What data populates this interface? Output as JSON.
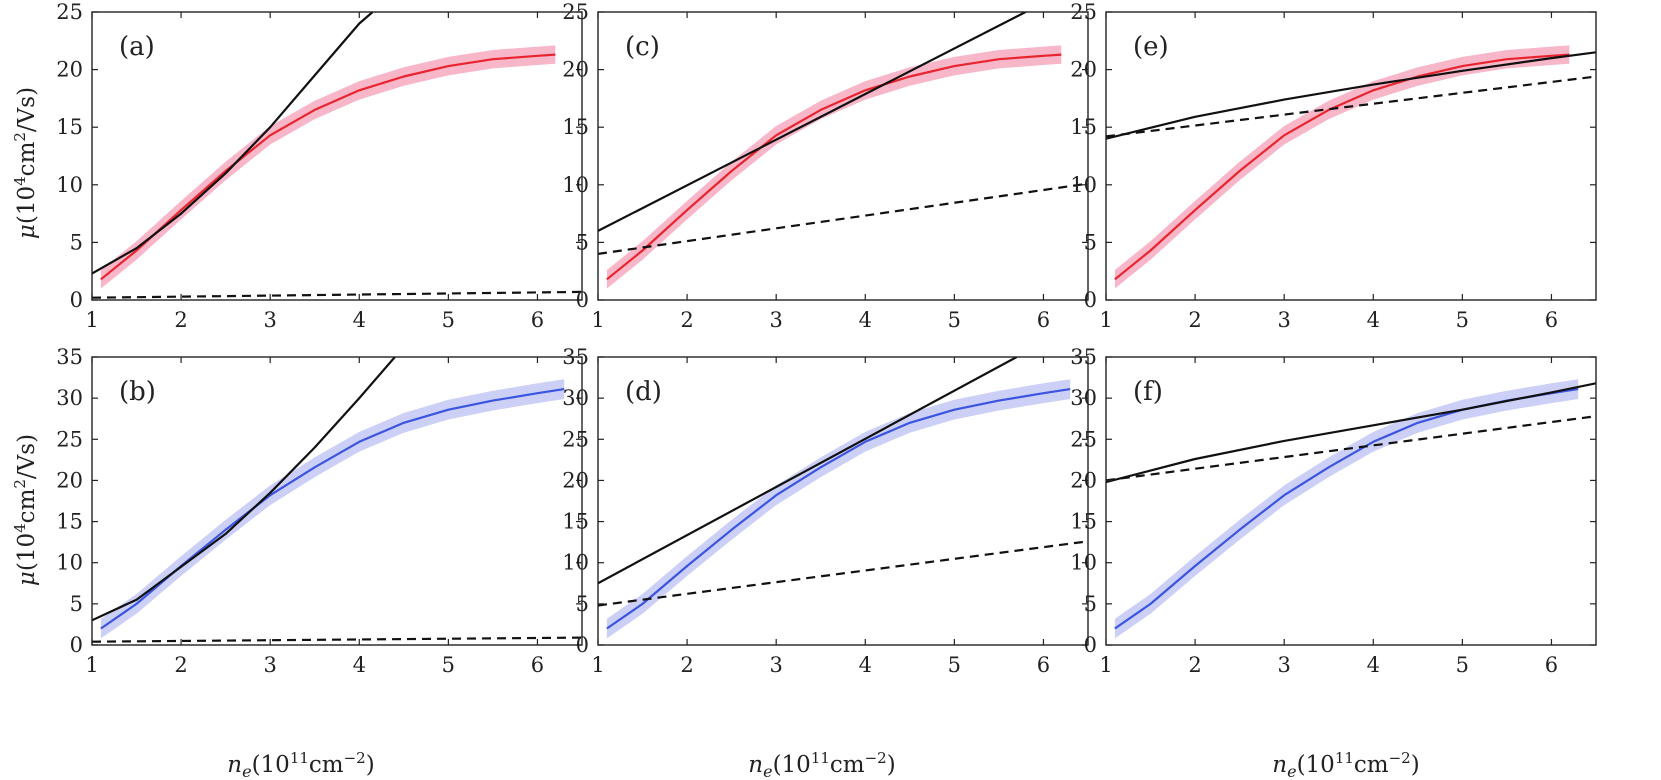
{
  "figure": {
    "ylabel": {
      "mu": "μ",
      "open": "(10",
      "exp4": "4",
      "cm": "cm",
      "exp2": "2",
      "rest": "/Vs)"
    },
    "xlabel": {
      "n": "n",
      "sub": "e",
      "open": "(10",
      "exp11": "11",
      "cm": "cm",
      "expm2": "−2",
      "close": ")"
    }
  },
  "colors": {
    "red_line": "#e8252f",
    "red_band": "#f7a9bf",
    "blue_line": "#3c55e0",
    "blue_band": "#c3c8f4",
    "fit": "#111111"
  },
  "chart_data": [
    {
      "id": "a",
      "label": "(a)",
      "type": "line",
      "row": 0,
      "col": 0,
      "xlim": [
        1,
        6.5
      ],
      "ylim": [
        0,
        25
      ],
      "xticks": [
        "1",
        "2",
        "3",
        "4",
        "5",
        "6"
      ],
      "yticks": [
        "0",
        "5",
        "10",
        "15",
        "20",
        "25"
      ],
      "series": [
        {
          "name": "data",
          "color": "red",
          "x": [
            1.1,
            1.5,
            2.0,
            2.5,
            3.0,
            3.5,
            4.0,
            4.5,
            5.0,
            5.5,
            6.0,
            6.2
          ],
          "y": [
            1.8,
            4.3,
            7.8,
            11.2,
            14.3,
            16.5,
            18.2,
            19.4,
            20.3,
            20.9,
            21.2,
            21.3
          ],
          "band": 0.8
        },
        {
          "name": "fit_solid",
          "style": "solid",
          "x": [
            1.0,
            1.5,
            2.0,
            2.5,
            3.0,
            3.5,
            4.0,
            4.15
          ],
          "y": [
            2.3,
            4.5,
            7.5,
            11.0,
            15.0,
            19.5,
            24.0,
            25.0
          ]
        },
        {
          "name": "fit_dashed",
          "style": "dashed",
          "x": [
            1.0,
            6.5
          ],
          "y": [
            0.2,
            0.7
          ]
        }
      ]
    },
    {
      "id": "b",
      "label": "(b)",
      "type": "line",
      "row": 1,
      "col": 0,
      "xlim": [
        1,
        6.5
      ],
      "ylim": [
        0,
        35
      ],
      "xticks": [
        "1",
        "2",
        "3",
        "4",
        "5",
        "6"
      ],
      "yticks": [
        "0",
        "5",
        "10",
        "15",
        "20",
        "25",
        "30",
        "35"
      ],
      "series": [
        {
          "name": "data",
          "color": "blue",
          "x": [
            1.1,
            1.5,
            2.0,
            2.5,
            3.0,
            3.5,
            4.0,
            4.5,
            5.0,
            5.5,
            6.0,
            6.3
          ],
          "y": [
            2.0,
            5.0,
            9.6,
            14.0,
            18.2,
            21.6,
            24.7,
            27.0,
            28.6,
            29.7,
            30.6,
            31.1
          ],
          "band": 1.2
        },
        {
          "name": "fit_solid",
          "style": "solid",
          "x": [
            1.0,
            1.5,
            2.0,
            2.5,
            3.0,
            3.5,
            4.0,
            4.4
          ],
          "y": [
            3.0,
            5.5,
            9.5,
            13.5,
            18.5,
            24.0,
            30.0,
            35.0
          ]
        },
        {
          "name": "fit_dashed",
          "style": "dashed",
          "x": [
            1.0,
            6.5
          ],
          "y": [
            0.4,
            0.9
          ]
        }
      ]
    },
    {
      "id": "c",
      "label": "(c)",
      "type": "line",
      "row": 0,
      "col": 1,
      "xlim": [
        1,
        6.5
      ],
      "ylim": [
        0,
        25
      ],
      "xticks": [
        "1",
        "2",
        "3",
        "4",
        "5",
        "6"
      ],
      "yticks": [
        "0",
        "5",
        "10",
        "15",
        "20",
        "25"
      ],
      "series": [
        {
          "name": "data",
          "color": "red",
          "x": [
            1.1,
            1.5,
            2.0,
            2.5,
            3.0,
            3.5,
            4.0,
            4.5,
            5.0,
            5.5,
            6.0,
            6.2
          ],
          "y": [
            1.8,
            4.3,
            7.8,
            11.2,
            14.3,
            16.5,
            18.2,
            19.4,
            20.3,
            20.9,
            21.2,
            21.3
          ],
          "band": 0.8
        },
        {
          "name": "fit_solid",
          "style": "solid",
          "x": [
            1.0,
            5.8
          ],
          "y": [
            6.0,
            25.0
          ]
        },
        {
          "name": "fit_dashed",
          "style": "dashed",
          "x": [
            1.0,
            6.5
          ],
          "y": [
            4.0,
            10.1
          ]
        }
      ]
    },
    {
      "id": "d",
      "label": "(d)",
      "type": "line",
      "row": 1,
      "col": 1,
      "xlim": [
        1,
        6.5
      ],
      "ylim": [
        0,
        35
      ],
      "xticks": [
        "1",
        "2",
        "3",
        "4",
        "5",
        "6"
      ],
      "yticks": [
        "0",
        "5",
        "10",
        "15",
        "20",
        "25",
        "30",
        "35"
      ],
      "series": [
        {
          "name": "data",
          "color": "blue",
          "x": [
            1.1,
            1.5,
            2.0,
            2.5,
            3.0,
            3.5,
            4.0,
            4.5,
            5.0,
            5.5,
            6.0,
            6.3
          ],
          "y": [
            2.0,
            5.0,
            9.6,
            14.0,
            18.2,
            21.6,
            24.7,
            27.0,
            28.6,
            29.7,
            30.6,
            31.1
          ],
          "band": 1.2
        },
        {
          "name": "fit_solid",
          "style": "solid",
          "x": [
            1.0,
            5.7
          ],
          "y": [
            7.5,
            35.0
          ]
        },
        {
          "name": "fit_dashed",
          "style": "dashed",
          "x": [
            1.0,
            6.5
          ],
          "y": [
            4.8,
            12.6
          ]
        }
      ]
    },
    {
      "id": "e",
      "label": "(e)",
      "type": "line",
      "row": 0,
      "col": 2,
      "xlim": [
        1,
        6.5
      ],
      "ylim": [
        0,
        25
      ],
      "xticks": [
        "1",
        "2",
        "3",
        "4",
        "5",
        "6"
      ],
      "yticks": [
        "0",
        "5",
        "10",
        "15",
        "20",
        "25"
      ],
      "series": [
        {
          "name": "data",
          "color": "red",
          "x": [
            1.1,
            1.5,
            2.0,
            2.5,
            3.0,
            3.5,
            4.0,
            4.5,
            5.0,
            5.5,
            6.0,
            6.2
          ],
          "y": [
            1.8,
            4.3,
            7.8,
            11.2,
            14.3,
            16.5,
            18.2,
            19.4,
            20.3,
            20.9,
            21.2,
            21.3
          ],
          "band": 0.8
        },
        {
          "name": "fit_solid",
          "style": "solid",
          "x": [
            1.0,
            2.0,
            3.0,
            4.0,
            5.0,
            6.0,
            6.5
          ],
          "y": [
            14.0,
            15.9,
            17.4,
            18.7,
            19.9,
            21.0,
            21.5
          ]
        },
        {
          "name": "fit_dashed",
          "style": "dashed",
          "x": [
            1.0,
            6.5
          ],
          "y": [
            14.2,
            19.4
          ]
        }
      ]
    },
    {
      "id": "f",
      "label": "(f)",
      "type": "line",
      "row": 1,
      "col": 2,
      "xlim": [
        1,
        6.5
      ],
      "ylim": [
        0,
        35
      ],
      "xticks": [
        "1",
        "2",
        "3",
        "4",
        "5",
        "6"
      ],
      "yticks": [
        "0",
        "5",
        "10",
        "15",
        "20",
        "25",
        "30",
        "35"
      ],
      "series": [
        {
          "name": "data",
          "color": "blue",
          "x": [
            1.1,
            1.5,
            2.0,
            2.5,
            3.0,
            3.5,
            4.0,
            4.5,
            5.0,
            5.5,
            6.0,
            6.3
          ],
          "y": [
            2.0,
            5.0,
            9.6,
            14.0,
            18.2,
            21.6,
            24.7,
            27.0,
            28.6,
            29.7,
            30.6,
            31.1
          ],
          "band": 1.2
        },
        {
          "name": "fit_solid",
          "style": "solid",
          "x": [
            1.0,
            2.0,
            3.0,
            4.0,
            5.0,
            6.0,
            6.5
          ],
          "y": [
            19.8,
            22.6,
            24.8,
            26.7,
            28.6,
            30.7,
            31.8
          ]
        },
        {
          "name": "fit_dashed",
          "style": "dashed",
          "x": [
            1.0,
            6.5
          ],
          "y": [
            20.0,
            27.8
          ]
        }
      ]
    }
  ]
}
